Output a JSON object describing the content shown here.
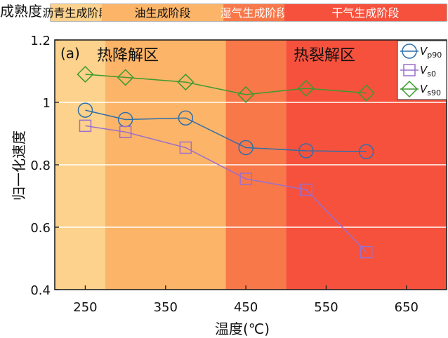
{
  "maturity": {
    "label": "成熟度",
    "stages": [
      {
        "label": "沥青生成阶段",
        "from": 212,
        "to": 275,
        "color": "#fcd28c"
      },
      {
        "label": "油生成阶段",
        "from": 275,
        "to": 425,
        "color": "#fbb468"
      },
      {
        "label": "湿气生成阶段",
        "from": 425,
        "to": 500,
        "color": "#f8784a"
      },
      {
        "label": "干气生成阶段",
        "from": 500,
        "to": 700,
        "color": "#f6513d"
      }
    ]
  },
  "zones": [
    {
      "label": "热降解区"
    },
    {
      "label": "热裂解区"
    }
  ],
  "chart_data": {
    "type": "line",
    "panel_label": "(a)",
    "xlabel": "温度(℃)",
    "ylabel": "归一化速度",
    "xlim": [
      212,
      700
    ],
    "ylim": [
      0.4,
      1.2
    ],
    "xticks": [
      250,
      350,
      450,
      550,
      650
    ],
    "yticks": [
      0.4,
      0.6,
      0.8,
      1,
      1.2
    ],
    "ytick_labels": [
      "0.4",
      "0.6",
      "0.8",
      "1",
      "1.2"
    ],
    "x": [
      250,
      300,
      375,
      450,
      525,
      600
    ],
    "grid": "horizontal",
    "legend_position": "top-right",
    "series": [
      {
        "name": "V",
        "sub": "p90",
        "marker": "circle",
        "color": "#2f6fa8",
        "values": [
          0.975,
          0.945,
          0.95,
          0.855,
          0.845,
          0.842
        ]
      },
      {
        "name": "V",
        "sub": "s0",
        "marker": "square",
        "color": "#9b6fcc",
        "values": [
          0.925,
          0.905,
          0.855,
          0.755,
          0.72,
          0.52
        ]
      },
      {
        "name": "V",
        "sub": "s90",
        "marker": "diamond",
        "color": "#3c9a2f",
        "values": [
          1.09,
          1.08,
          1.065,
          1.025,
          1.045,
          1.03
        ]
      }
    ]
  }
}
